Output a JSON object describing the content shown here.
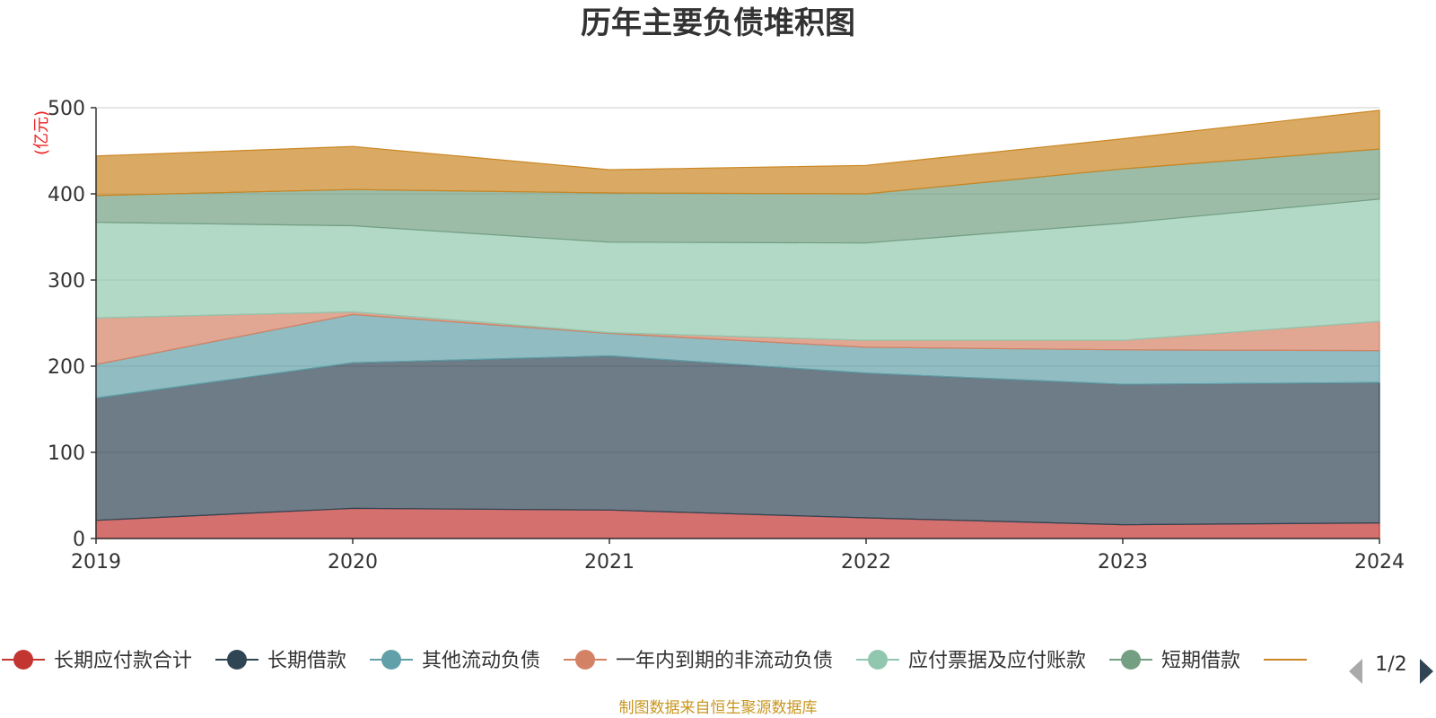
{
  "chart_data": {
    "type": "area",
    "stacked": true,
    "title": "历年主要负债堆积图",
    "ylabel": "(亿元)",
    "xlabel": "",
    "x": [
      "2019",
      "2020",
      "2021",
      "2022",
      "2023",
      "2024"
    ],
    "ylim": [
      0,
      500
    ],
    "yticks": [
      0,
      100,
      200,
      300,
      400,
      500
    ],
    "series": [
      {
        "name": "长期应付款合计",
        "color": "#c23531",
        "values": [
          21,
          35,
          33,
          24,
          16,
          18
        ]
      },
      {
        "name": "长期借款",
        "color": "#2f4554",
        "values": [
          142,
          169,
          179,
          168,
          163,
          163
        ]
      },
      {
        "name": "其他流动负债",
        "color": "#61a0a8",
        "values": [
          39,
          56,
          26,
          30,
          40,
          37
        ]
      },
      {
        "name": "一年内到期的非流动负债",
        "color": "#d48265",
        "values": [
          54,
          3,
          1,
          8,
          11,
          34
        ]
      },
      {
        "name": "应付票据及应付账款",
        "color": "#91c7ae",
        "values": [
          111,
          100,
          105,
          113,
          136,
          142
        ]
      },
      {
        "name": "短期借款",
        "color": "#749f83",
        "values": [
          31,
          42,
          57,
          57,
          63,
          58
        ]
      },
      {
        "name": "",
        "color": "#ca8622",
        "values": [
          46,
          50,
          27,
          33,
          35,
          45
        ]
      }
    ],
    "legend_position": "bottom",
    "legend_page": "1/2"
  },
  "footer": {
    "source": "制图数据来自恒生聚源数据库"
  },
  "colors": {
    "axis": "#333333",
    "grid": "#cccccc",
    "unit": "#ee2222",
    "source": "#c8961e",
    "pager_active": "#2f4554",
    "pager_inactive": "#aaaaaa"
  }
}
